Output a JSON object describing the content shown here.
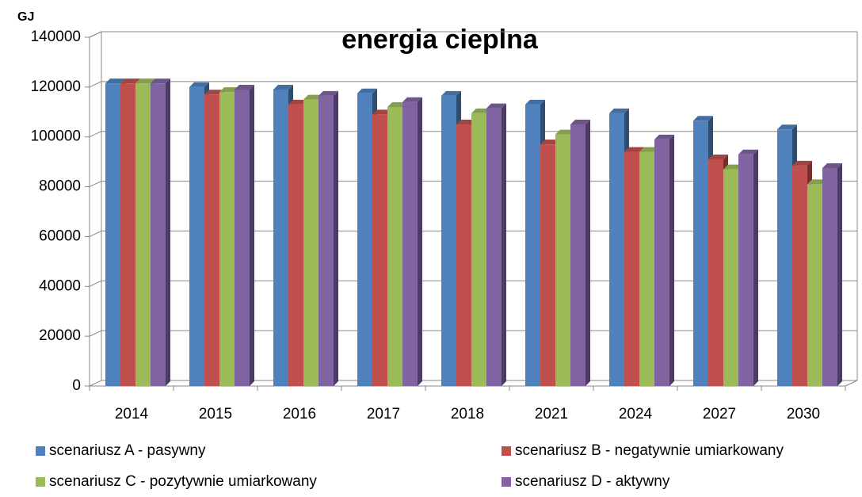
{
  "chart_data": {
    "type": "bar",
    "title": "energia cieplna",
    "y_axis_label": "GJ",
    "categories": [
      "2014",
      "2015",
      "2016",
      "2017",
      "2018",
      "2021",
      "2024",
      "2027",
      "2030"
    ],
    "series": [
      {
        "name": "scenariusz A - pasywny",
        "color": "#4f81bd",
        "values": [
          121500,
          120000,
          119000,
          117500,
          116500,
          113000,
          109500,
          106500,
          103000
        ]
      },
      {
        "name": "scenariusz B - negatywnie umiarkowany",
        "color": "#c0504d",
        "values": [
          121500,
          117000,
          113000,
          109000,
          105000,
          97000,
          94000,
          91000,
          88500
        ]
      },
      {
        "name": "scenariusz C - pozytywnie umiarkowany",
        "color": "#9bbb59",
        "values": [
          121500,
          118000,
          115000,
          112000,
          109500,
          101000,
          94000,
          87000,
          81000
        ]
      },
      {
        "name": "scenariusz D - aktywny",
        "color": "#8064a2",
        "values": [
          121500,
          119000,
          116500,
          114000,
          111500,
          105000,
          99000,
          93000,
          87500
        ]
      }
    ],
    "ylim": [
      0,
      140000
    ],
    "yticks": [
      0,
      20000,
      40000,
      60000,
      80000,
      100000,
      120000,
      140000
    ],
    "grid": true
  }
}
